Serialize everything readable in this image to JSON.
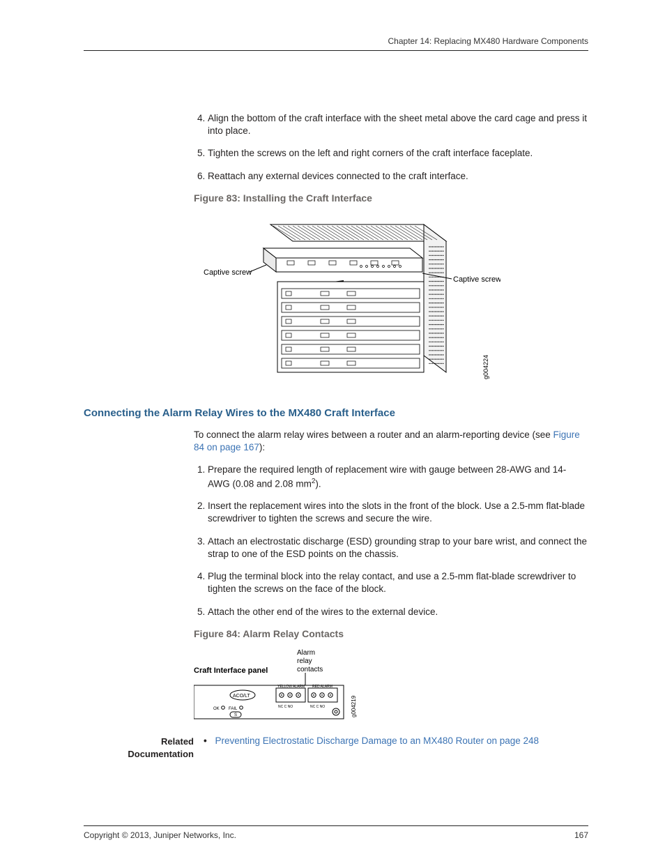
{
  "header": {
    "running_head": "Chapter 14: Replacing MX480 Hardware Components"
  },
  "steps_a": {
    "start": 4,
    "items": [
      "Align the bottom of the craft interface with the sheet metal above the card cage and press it into place.",
      "Tighten the screws on the left and right corners of the craft interface faceplate.",
      "Reattach any external devices connected to the craft interface."
    ]
  },
  "figure83": {
    "title": "Figure 83: Installing the Craft Interface",
    "label_left": "Captive screw",
    "label_right": "Captive screw",
    "gid": "g004224",
    "stroke": "#000000",
    "fill": "#ffffff",
    "pattern_stroke": "#222222",
    "arrow_fill": "#000000",
    "label_font_size": 11
  },
  "section_b": {
    "title": "Connecting the Alarm Relay Wires to the MX480 Craft Interface",
    "intro_pre": "To connect the alarm relay wires between a router and an alarm-reporting device (see ",
    "intro_link": "Figure 84 on page 167",
    "intro_post": "):",
    "steps": [
      {
        "text": "Prepare the required length of replacement wire with gauge between 28-AWG and 14-AWG (0.08 and 2.08 mm",
        "sup": "2",
        "text2": ")."
      },
      {
        "text": "Insert the replacement wires into the slots in the front of the block. Use a 2.5-mm flat-blade screwdriver to tighten the screws and secure the wire."
      },
      {
        "text": "Attach an electrostatic discharge (ESD) grounding strap to your bare wrist, and connect the strap to one of the ESD points on the chassis."
      },
      {
        "text": "Plug the terminal block into the relay contact, and use a 2.5-mm flat-blade screwdriver to tighten the screws on the face of the block."
      },
      {
        "text": "Attach the other end of the wires to the external device."
      }
    ]
  },
  "figure84": {
    "title": "Figure 84: Alarm Relay Contacts",
    "label_panel": "Craft Interface panel",
    "label_relay_l1": "Alarm",
    "label_relay_l2": "relay",
    "label_relay_l3": "contacts",
    "yellow_alarm": "YELLOW ALARM",
    "red_alarm": "RED ALARM",
    "nc_c_no": "NC  C  NO",
    "acolt": "ACO/LT",
    "ok": "OK",
    "fail": "FAIL",
    "s": "S",
    "gid": "g004219",
    "stroke": "#000000",
    "fill": "#ffffff",
    "label_font_size": 11
  },
  "related": {
    "label_l1": "Related",
    "label_l2": "Documentation",
    "link_text": "Preventing Electrostatic Discharge Damage to an MX480 Router on page 248",
    "link_color": "#3b73b4"
  },
  "footer": {
    "copyright": "Copyright © 2013, Juniper Networks, Inc.",
    "page_number": "167"
  }
}
